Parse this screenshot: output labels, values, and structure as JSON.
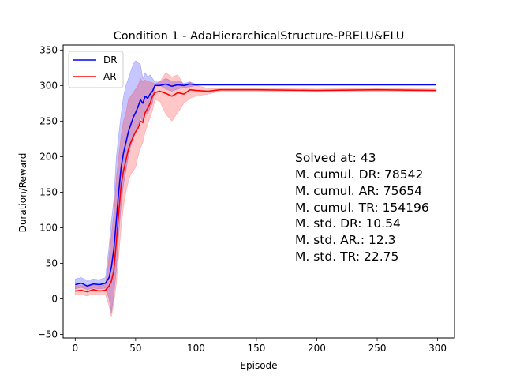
{
  "chart_data": {
    "type": "line",
    "title": "Condition 1 - AdaHierarchicalStructure-PRELU&ELU",
    "xlabel": "Episode",
    "ylabel": "Duration/Reward",
    "xlim": [
      -10,
      314
    ],
    "ylim": [
      -55,
      357
    ],
    "xticks": [
      0,
      50,
      100,
      150,
      200,
      250,
      300
    ],
    "yticks": [
      -50,
      0,
      50,
      100,
      150,
      200,
      250,
      300,
      350
    ],
    "grid": false,
    "legend_position": "top-left",
    "series": [
      {
        "name": "DR",
        "color": "#0000ff",
        "band_color": "#0000ff",
        "x": [
          0,
          5,
          10,
          15,
          20,
          25,
          28,
          30,
          32,
          34,
          36,
          38,
          40,
          42,
          44,
          46,
          48,
          50,
          52,
          54,
          56,
          58,
          60,
          62,
          64,
          66,
          70,
          75,
          80,
          85,
          90,
          95,
          100,
          110,
          150,
          200,
          250,
          299
        ],
        "y": [
          20,
          22,
          18,
          21,
          20,
          22,
          30,
          45,
          70,
          110,
          150,
          185,
          205,
          220,
          235,
          245,
          255,
          262,
          270,
          280,
          275,
          285,
          282,
          288,
          292,
          300,
          300,
          302,
          299,
          301,
          300,
          302,
          301,
          301,
          301,
          301,
          301,
          301
        ],
        "lower": [
          14,
          16,
          13,
          15,
          14,
          15,
          0,
          -20,
          5,
          40,
          90,
          130,
          160,
          180,
          200,
          215,
          225,
          235,
          245,
          255,
          250,
          262,
          260,
          268,
          275,
          300,
          300,
          295,
          292,
          295,
          297,
          298,
          300,
          301,
          301,
          301,
          301,
          301
        ],
        "upper": [
          28,
          30,
          26,
          28,
          27,
          30,
          75,
          110,
          140,
          200,
          230,
          260,
          285,
          300,
          310,
          320,
          330,
          335,
          332,
          330,
          310,
          318,
          312,
          315,
          310,
          305,
          305,
          310,
          306,
          307,
          303,
          305,
          302,
          301,
          301,
          301,
          301,
          301
        ]
      },
      {
        "name": "AR",
        "color": "#ff0000",
        "band_color": "#ff0000",
        "x": [
          0,
          5,
          10,
          15,
          20,
          25,
          28,
          30,
          32,
          34,
          36,
          38,
          40,
          42,
          44,
          46,
          48,
          50,
          52,
          54,
          56,
          58,
          60,
          62,
          64,
          66,
          70,
          75,
          80,
          85,
          90,
          95,
          100,
          110,
          120,
          150,
          200,
          250,
          299
        ],
        "y": [
          11,
          12,
          10,
          13,
          11,
          12,
          18,
          25,
          40,
          80,
          120,
          160,
          180,
          195,
          210,
          220,
          228,
          235,
          240,
          250,
          248,
          262,
          268,
          275,
          285,
          290,
          292,
          289,
          285,
          290,
          288,
          294,
          293,
          292,
          294,
          294,
          293,
          294,
          293
        ],
        "lower": [
          5,
          6,
          4,
          7,
          5,
          6,
          -10,
          -25,
          -5,
          20,
          60,
          100,
          130,
          150,
          165,
          175,
          180,
          185,
          200,
          212,
          220,
          235,
          245,
          255,
          265,
          280,
          278,
          260,
          250,
          262,
          275,
          282,
          285,
          288,
          292,
          292,
          291,
          292,
          291
        ],
        "upper": [
          18,
          19,
          17,
          20,
          18,
          20,
          60,
          90,
          120,
          170,
          200,
          230,
          250,
          262,
          280,
          285,
          290,
          295,
          300,
          310,
          305,
          308,
          305,
          305,
          304,
          302,
          305,
          318,
          312,
          315,
          300,
          305,
          300,
          296,
          296,
          296,
          295,
          296,
          295
        ]
      }
    ],
    "annotation_lines": [
      "Solved at: 43",
      "M. cumul. DR: 78542",
      "M. cumul. AR: 75654",
      "M. cumul. TR: 154196",
      "M. std. DR: 10.54",
      "M. std. AR.: 12.3",
      "M. std. TR: 22.75"
    ]
  }
}
